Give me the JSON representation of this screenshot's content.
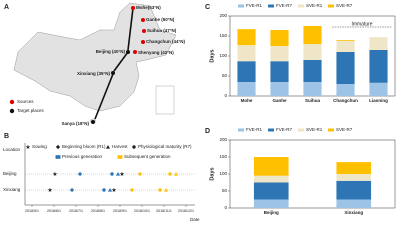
{
  "map": {
    "panel": "A",
    "places": [
      "Mohe(53°N)",
      "Ganhe (50°N)",
      "Suihua (47°N)",
      "Changchun (44°N)",
      "Shenyang (42°N)",
      "Beijing (40°N)",
      "Xinxiang (35°N)",
      "Sanya (18°N)"
    ],
    "legend": [
      "Sources",
      "Target places"
    ]
  },
  "timeline": {
    "panel": "B",
    "legend": [
      "Sowing",
      "Beginning bloom (R1)",
      "Harvest",
      "Physiological maturity (R7)",
      "Previous generation",
      "Subsequent generation"
    ],
    "ylabel": "Location",
    "locations": [
      "Beijing",
      "Xinxiang"
    ],
    "xticks": [
      "2018/5/1",
      "2018/6/1",
      "2018/7/1",
      "2018/8/1",
      "2018/9/1",
      "2018/10/1",
      "2018/11/1",
      "2018/12/1"
    ],
    "xlabel": "Date"
  },
  "chart_data": [
    {
      "type": "bar",
      "stacked": true,
      "panel": "C",
      "ylabel": "Days",
      "annotation": "Immature",
      "categories": [
        "Mohe",
        "Ganhe",
        "Suihua",
        "Changchun",
        "Liaoning"
      ],
      "series": [
        {
          "name": "FVE-R1",
          "color": "#9dc3e6",
          "values": [
            35,
            35,
            35,
            30,
            33
          ]
        },
        {
          "name": "FVE-R7",
          "color": "#2e75b6",
          "values": [
            52,
            52,
            55,
            80,
            82
          ]
        },
        {
          "name": "SVE-R1",
          "color": "#efe6c8",
          "values": [
            40,
            38,
            40,
            28,
            32
          ]
        },
        {
          "name": "SVE-R7",
          "color": "#ffc000",
          "values": [
            40,
            40,
            45,
            2,
            0
          ]
        }
      ],
      "ylim": [
        0,
        200
      ],
      "yticks": [
        0,
        50,
        100,
        150,
        200
      ]
    },
    {
      "type": "bar",
      "stacked": true,
      "panel": "D",
      "ylabel": "Days",
      "categories": [
        "Beijing",
        "Xinxiang"
      ],
      "series": [
        {
          "name": "FVE-R1",
          "color": "#9dc3e6",
          "values": [
            25,
            25
          ]
        },
        {
          "name": "FVE-R7",
          "color": "#2e75b6",
          "values": [
            50,
            55
          ]
        },
        {
          "name": "SVE-R1",
          "color": "#efe6c8",
          "values": [
            20,
            20
          ]
        },
        {
          "name": "SVE-R7",
          "color": "#ffc000",
          "values": [
            55,
            35
          ]
        }
      ],
      "ylim": [
        0,
        200
      ],
      "yticks": [
        0,
        50,
        100,
        150,
        200
      ]
    }
  ]
}
